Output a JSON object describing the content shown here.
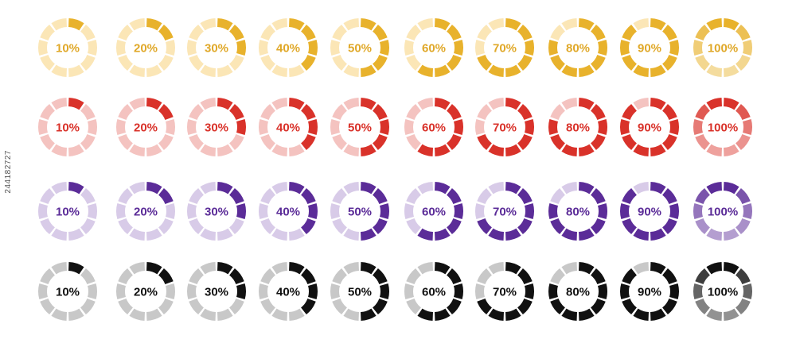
{
  "rows": [
    {
      "name": "yellow",
      "active_color": "#e8b22c",
      "inactive_color": "#fbe6b6",
      "label_color": "#e0a828",
      "items": [
        {
          "label": "10%",
          "progress": 0.1
        },
        {
          "label": "20%",
          "progress": 0.2
        },
        {
          "label": "30%",
          "progress": 0.3
        },
        {
          "label": "40%",
          "progress": 0.4
        },
        {
          "label": "50%",
          "progress": 0.5
        },
        {
          "label": "60%",
          "progress": 0.6
        },
        {
          "label": "70%",
          "progress": 0.7
        },
        {
          "label": "80%",
          "progress": 0.8
        },
        {
          "label": "90%",
          "progress": 0.9
        },
        {
          "label": "100%",
          "progress": 1.0
        }
      ]
    },
    {
      "name": "red",
      "active_color": "#d9322a",
      "inactive_color": "#f4c3c0",
      "label_color": "#d9322a",
      "items": [
        {
          "label": "10%",
          "progress": 0.1
        },
        {
          "label": "20%",
          "progress": 0.2
        },
        {
          "label": "30%",
          "progress": 0.3
        },
        {
          "label": "40%",
          "progress": 0.4
        },
        {
          "label": "50%",
          "progress": 0.5
        },
        {
          "label": "60%",
          "progress": 0.6
        },
        {
          "label": "70%",
          "progress": 0.7
        },
        {
          "label": "80%",
          "progress": 0.8
        },
        {
          "label": "90%",
          "progress": 0.9
        },
        {
          "label": "100%",
          "progress": 1.0
        }
      ]
    },
    {
      "name": "purple",
      "active_color": "#5b2c98",
      "inactive_color": "#d8cbe8",
      "label_color": "#5b2c98",
      "items": [
        {
          "label": "10%",
          "progress": 0.1
        },
        {
          "label": "20%",
          "progress": 0.2
        },
        {
          "label": "30%",
          "progress": 0.3
        },
        {
          "label": "40%",
          "progress": 0.4
        },
        {
          "label": "50%",
          "progress": 0.5
        },
        {
          "label": "60%",
          "progress": 0.6
        },
        {
          "label": "70%",
          "progress": 0.7
        },
        {
          "label": "80%",
          "progress": 0.8
        },
        {
          "label": "90%",
          "progress": 0.9
        },
        {
          "label": "100%",
          "progress": 1.0
        }
      ]
    },
    {
      "name": "black",
      "active_color": "#111111",
      "inactive_color": "#c8c8c8",
      "label_color": "#111111",
      "items": [
        {
          "label": "10%",
          "progress": 0.1
        },
        {
          "label": "20%",
          "progress": 0.2
        },
        {
          "label": "30%",
          "progress": 0.3
        },
        {
          "label": "40%",
          "progress": 0.4
        },
        {
          "label": "50%",
          "progress": 0.5
        },
        {
          "label": "60%",
          "progress": 0.6
        },
        {
          "label": "70%",
          "progress": 0.7
        },
        {
          "label": "80%",
          "progress": 0.8
        },
        {
          "label": "90%",
          "progress": 0.9
        },
        {
          "label": "100%",
          "progress": 1.0
        }
      ]
    }
  ],
  "watermark": "244182727"
}
